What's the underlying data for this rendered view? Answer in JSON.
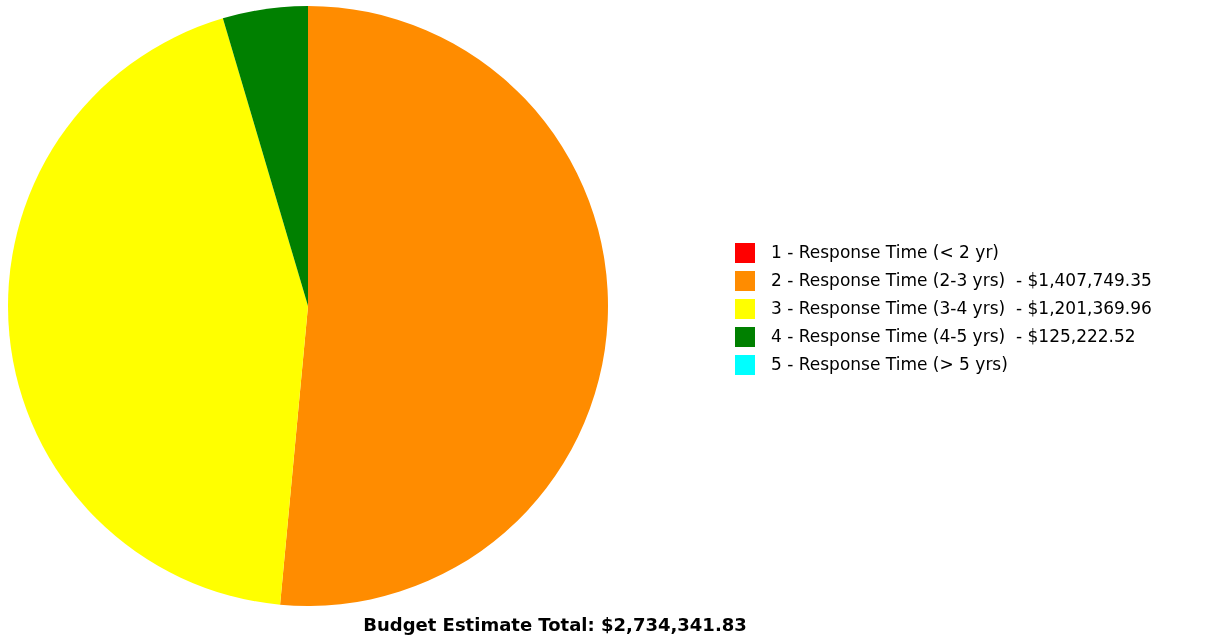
{
  "chart_data": {
    "type": "pie",
    "title": "Budget Estimate Total: $2,734,341.83",
    "categories": [
      "1 - Response Time (< 2 yr)",
      "2 - Response Time (2-3 yrs)",
      "3 - Response Time (3-4 yrs)",
      "4 - Response Time (4-5 yrs)",
      "5 - Response Time (> 5 yrs)"
    ],
    "values": [
      0,
      1407749.35,
      1201369.96,
      125222.52,
      0
    ],
    "value_labels": [
      null,
      "$1,407,749.35",
      "$1,201,369.96",
      "$125,222.52",
      null
    ],
    "colors": [
      "#ff0000",
      "#ff8c00",
      "#ffff00",
      "#008000",
      "#00ffff"
    ],
    "legend": "right"
  }
}
